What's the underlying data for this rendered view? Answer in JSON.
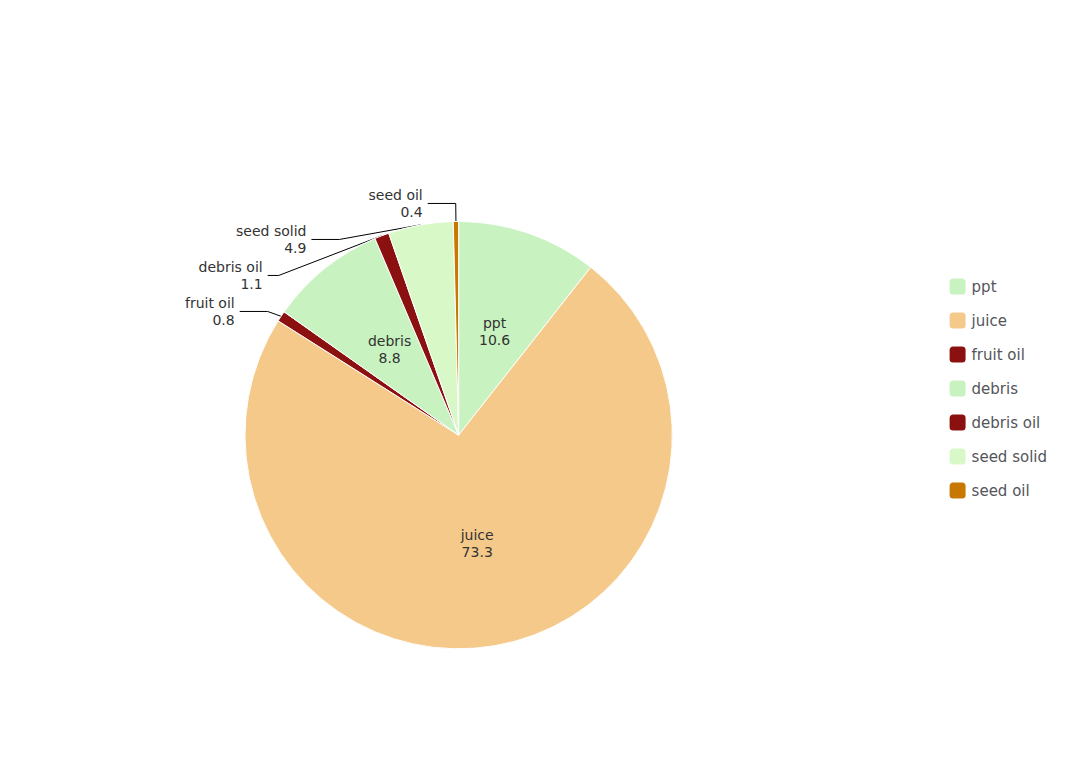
{
  "chart_data": {
    "type": "pie",
    "categories": [
      "ppt",
      "juice",
      "fruit oil",
      "debris",
      "debris oil",
      "seed solid",
      "seed oil"
    ],
    "values": [
      10.6,
      73.3,
      0.8,
      8.8,
      1.1,
      4.9,
      0.4
    ],
    "colors": [
      "#c8f2c0",
      "#f5c98a",
      "#8b1010",
      "#c8f2c0",
      "#8b1010",
      "#d8f8c8",
      "#c87800"
    ],
    "legend": "right",
    "data_labels": true
  }
}
